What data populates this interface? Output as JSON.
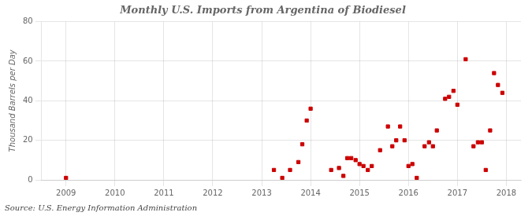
{
  "chart_data": {
    "type": "scatter",
    "title": "Monthly U.S. Imports from Argentina of Biodiesel",
    "ylabel": "Thousand Barrels per Day",
    "annotations": [
      "Source: U.S. Energy Information Administration"
    ],
    "x": [
      2009,
      2013.25,
      2013.42,
      2013.58,
      2013.75,
      2013.83,
      2013.92,
      2014,
      2014.42,
      2014.58,
      2014.67,
      2014.75,
      2014.83,
      2014.92,
      2015,
      2015.08,
      2015.17,
      2015.25,
      2015.42,
      2015.58,
      2015.67,
      2015.75,
      2015.83,
      2015.92,
      2016,
      2016.08,
      2016.17,
      2016.33,
      2016.42,
      2016.5,
      2016.58,
      2016.75,
      2016.83,
      2016.92,
      2017,
      2017.17,
      2017.33,
      2017.42,
      2017.5,
      2017.58,
      2017.67,
      2017.75,
      2017.83,
      2017.92
    ],
    "values": [
      1,
      5,
      1,
      5,
      9,
      18,
      30,
      36,
      5,
      6,
      2,
      11,
      11,
      10,
      8,
      7,
      5,
      7,
      15,
      27,
      17,
      20,
      27,
      20,
      7,
      8,
      1,
      17,
      19,
      17,
      25,
      41,
      42,
      45,
      38,
      61,
      17,
      19,
      19,
      5,
      25,
      54,
      48,
      44
    ],
    "color": "#cc0000",
    "marker": "square",
    "xlim": [
      2008.5,
      2018.3
    ],
    "xticks": [
      2009,
      2010,
      2011,
      2012,
      2013,
      2014,
      2015,
      2016,
      2017,
      2018
    ],
    "ylim": [
      0,
      80
    ],
    "yticks": [
      0,
      20,
      40,
      60,
      80
    ],
    "grid": true
  }
}
